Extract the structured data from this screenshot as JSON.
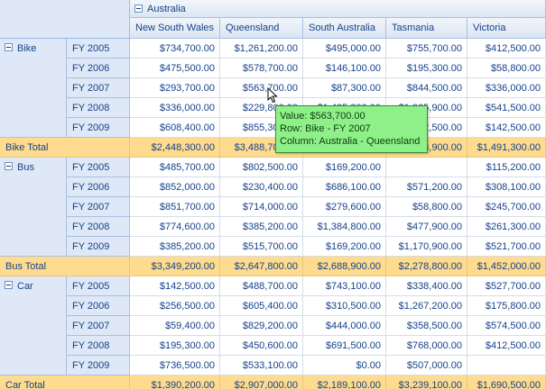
{
  "region": "Australia",
  "columns": [
    "New South Wales",
    "Queensland",
    "South Australia",
    "Tasmania",
    "Victoria"
  ],
  "groups": [
    {
      "name": "Bike",
      "rows": [
        {
          "year": "FY 2005",
          "values": [
            "$734,700.00",
            "$1,261,200.00",
            "$495,000.00",
            "$755,700.00",
            "$412,500.00"
          ]
        },
        {
          "year": "FY 2006",
          "values": [
            "$475,500.00",
            "$578,700.00",
            "$146,100.00",
            "$195,300.00",
            "$58,800.00"
          ]
        },
        {
          "year": "FY 2007",
          "values": [
            "$293,700.00",
            "$563,700.00",
            "$87,300.00",
            "$844,500.00",
            "$336,000.00"
          ]
        },
        {
          "year": "FY 2008",
          "values": [
            "$336,000.00",
            "$229,800.00",
            "$1,435,800.00",
            "$1,065,900.00",
            "$541,500.00"
          ]
        },
        {
          "year": "FY 2009",
          "values": [
            "$608,400.00",
            "$855,300.00",
            "",
            "$1,292,500.00",
            "$142,500.00"
          ]
        }
      ],
      "total_label": "Bike Total",
      "totals": [
        "$2,448,300.00",
        "$3,488,700.00",
        "",
        "$4,153,900.00",
        "$1,491,300.00"
      ]
    },
    {
      "name": "Bus",
      "rows": [
        {
          "year": "FY 2005",
          "values": [
            "$485,700.00",
            "$802,500.00",
            "$169,200.00",
            "",
            "$115,200.00"
          ]
        },
        {
          "year": "FY 2006",
          "values": [
            "$852,000.00",
            "$230,400.00",
            "$686,100.00",
            "$571,200.00",
            "$308,100.00"
          ]
        },
        {
          "year": "FY 2007",
          "values": [
            "$851,700.00",
            "$714,000.00",
            "$279,600.00",
            "$58,800.00",
            "$245,700.00"
          ]
        },
        {
          "year": "FY 2008",
          "values": [
            "$774,600.00",
            "$385,200.00",
            "$1,384,800.00",
            "$477,900.00",
            "$261,300.00"
          ]
        },
        {
          "year": "FY 2009",
          "values": [
            "$385,200.00",
            "$515,700.00",
            "$169,200.00",
            "$1,170,900.00",
            "$521,700.00"
          ]
        }
      ],
      "total_label": "Bus Total",
      "totals": [
        "$3,349,200.00",
        "$2,647,800.00",
        "$2,688,900.00",
        "$2,278,800.00",
        "$1,452,000.00"
      ]
    },
    {
      "name": "Car",
      "rows": [
        {
          "year": "FY 2005",
          "values": [
            "$142,500.00",
            "$488,700.00",
            "$743,100.00",
            "$338,400.00",
            "$527,700.00"
          ]
        },
        {
          "year": "FY 2006",
          "values": [
            "$256,500.00",
            "$605,400.00",
            "$310,500.00",
            "$1,267,200.00",
            "$175,800.00"
          ]
        },
        {
          "year": "FY 2007",
          "values": [
            "$59,400.00",
            "$829,200.00",
            "$444,000.00",
            "$358,500.00",
            "$574,500.00"
          ]
        },
        {
          "year": "FY 2008",
          "values": [
            "$195,300.00",
            "$450,600.00",
            "$691,500.00",
            "$768,000.00",
            "$412,500.00"
          ]
        },
        {
          "year": "FY 2009",
          "values": [
            "$736,500.00",
            "$533,100.00",
            "$0.00",
            "$507,000.00",
            ""
          ]
        }
      ],
      "total_label": "Car Total",
      "totals": [
        "$1,390,200.00",
        "$2,907,000.00",
        "$2,189,100.00",
        "$3,239,100.00",
        "$1,690,500.00"
      ]
    }
  ],
  "tooltip": {
    "value": "Value: $563,700.00",
    "row": "Row: Bike - FY 2007",
    "column": "Column: Australia - Queensland"
  },
  "icons": {
    "toggle": "collapse-minus-icon",
    "cursor": "mouse-pointer-icon"
  },
  "colors": {
    "header_bg": "#dfe8f6",
    "total_bg": "#fedb8e",
    "tooltip_bg": "#8ff08a",
    "text": "#15428b"
  }
}
